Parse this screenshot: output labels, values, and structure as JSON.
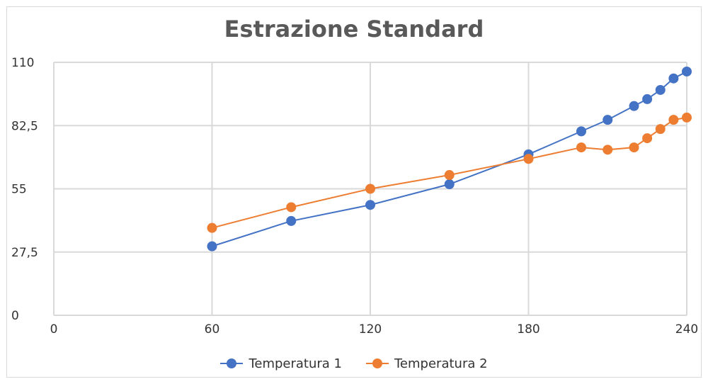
{
  "chart_data": {
    "type": "line",
    "title": "Estrazione Standard",
    "xlim": [
      0,
      240
    ],
    "ylim": [
      0,
      110
    ],
    "x_ticks": [
      "0",
      "60",
      "120",
      "180",
      "240"
    ],
    "x_tick_values": [
      0,
      60,
      120,
      180,
      240
    ],
    "y_ticks": [
      "0",
      "27,5",
      "55",
      "82,5",
      "110"
    ],
    "y_tick_values": [
      0,
      27.5,
      55,
      82.5,
      110
    ],
    "grid": true,
    "legend_position": "bottom",
    "series": [
      {
        "name": "Temperatura 1",
        "color": "#4472c4",
        "x": [
          60,
          90,
          120,
          150,
          180,
          200,
          210,
          220,
          225,
          230,
          235,
          240
        ],
        "y": [
          30,
          41,
          48,
          57,
          70,
          80,
          85,
          91,
          94,
          98,
          103,
          106
        ]
      },
      {
        "name": "Temperatura 2",
        "color": "#ed7d31",
        "x": [
          60,
          90,
          120,
          150,
          180,
          200,
          210,
          220,
          225,
          230,
          235,
          240
        ],
        "y": [
          38,
          47,
          55,
          61,
          68,
          73,
          72,
          73,
          77,
          81,
          85,
          86
        ]
      }
    ]
  }
}
